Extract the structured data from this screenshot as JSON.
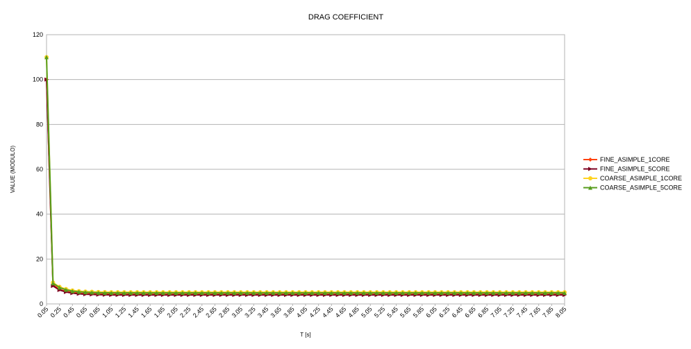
{
  "chart_data": {
    "type": "line",
    "title": "DRAG COEFFICIENT",
    "xlabel": "T [s]",
    "ylabel": "VALUE (MODULO)",
    "ylim": [
      0,
      120
    ],
    "yticks": [
      0,
      20,
      40,
      60,
      80,
      100,
      120
    ],
    "xlim": [
      0.05,
      8.05
    ],
    "xticks": [
      "0.05",
      "0.25",
      "0.45",
      "0.65",
      "0.85",
      "1.05",
      "1.25",
      "1.45",
      "1.65",
      "1.85",
      "2.05",
      "2.25",
      "2.45",
      "2.65",
      "2.85",
      "3.05",
      "3.25",
      "3.45",
      "3.65",
      "3.85",
      "4.05",
      "4.25",
      "4.45",
      "4.65",
      "4.85",
      "5.05",
      "5.25",
      "5.45",
      "5.65",
      "5.85",
      "6.05",
      "6.25",
      "6.45",
      "6.65",
      "6.85",
      "7.05",
      "7.25",
      "7.45",
      "7.65",
      "7.85",
      "8.05"
    ],
    "x_start": 0.05,
    "x_step": 0.1,
    "n_points": 81,
    "grid": "horizontal",
    "legend_position": "right",
    "series": [
      {
        "name": "FINE_ASIMPLE_1CORE",
        "color": "#ff420e",
        "marker": "diamond",
        "first_values": [
          100,
          8.5,
          6.5,
          5.6,
          5.1,
          4.8,
          4.6,
          4.5,
          4.4,
          4.35
        ],
        "tail_value": 4.3
      },
      {
        "name": "FINE_ASIMPLE_5CORE",
        "color": "#7e0021",
        "marker": "arrow",
        "first_values": [
          100,
          8.0,
          6.2,
          5.3,
          4.8,
          4.5,
          4.3,
          4.2,
          4.1,
          4.05
        ],
        "tail_value": 4.0
      },
      {
        "name": "COARSE_ASIMPLE_1CORE",
        "color": "#ffd320",
        "marker": "circle",
        "first_values": [
          110,
          9.5,
          7.6,
          6.6,
          6.0,
          5.7,
          5.5,
          5.4,
          5.3,
          5.25
        ],
        "tail_value": 5.2
      },
      {
        "name": "COARSE_ASIMPLE_5CORE",
        "color": "#579d1c",
        "marker": "triangle",
        "first_values": [
          110,
          9.2,
          7.3,
          6.3,
          5.7,
          5.4,
          5.2,
          5.1,
          5.0,
          4.95
        ],
        "tail_value": 4.9
      }
    ]
  }
}
